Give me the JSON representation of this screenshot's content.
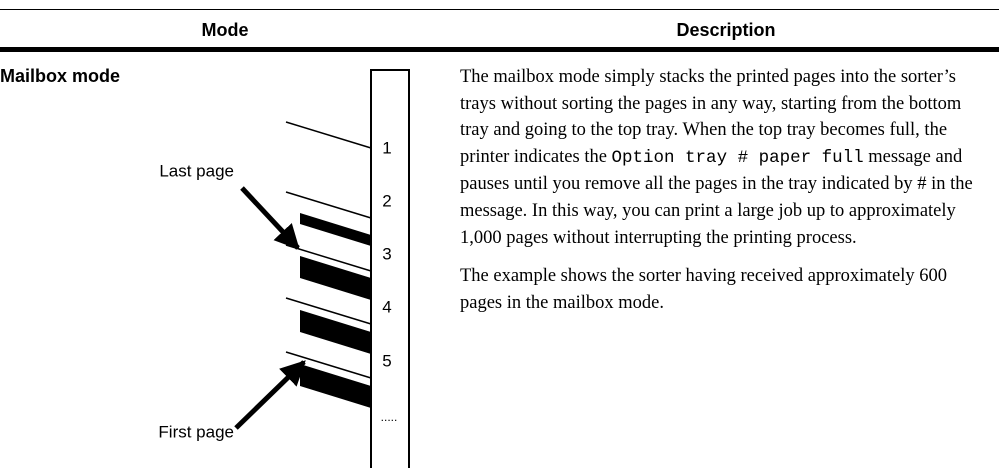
{
  "table": {
    "headers": [
      "Mode",
      "Description"
    ],
    "rows": [
      {
        "mode": "Mailbox mode",
        "diagram": {
          "labels": [
            "Last page",
            "First page"
          ],
          "trays": [
            "1",
            "2",
            "3",
            "4",
            "5",
            "....."
          ]
        },
        "paragraphs": [
          [
            "The mailbox mode simply stacks the printed pages into the sorter’s trays without sorting the pages in any way, starting from the bottom tray and going to the top tray. When the top tray becomes full, the printer indicates the ",
            "Option tray # paper full",
            " message and pauses until you remove all the pages in the tray indicated by # in the message. In this way, you can print a large job up to approximately 1,000 pages without interrupting the printing process."
          ],
          [
            "The example shows the sorter having received approximately 600 pages in the mailbox mode."
          ]
        ]
      }
    ]
  }
}
